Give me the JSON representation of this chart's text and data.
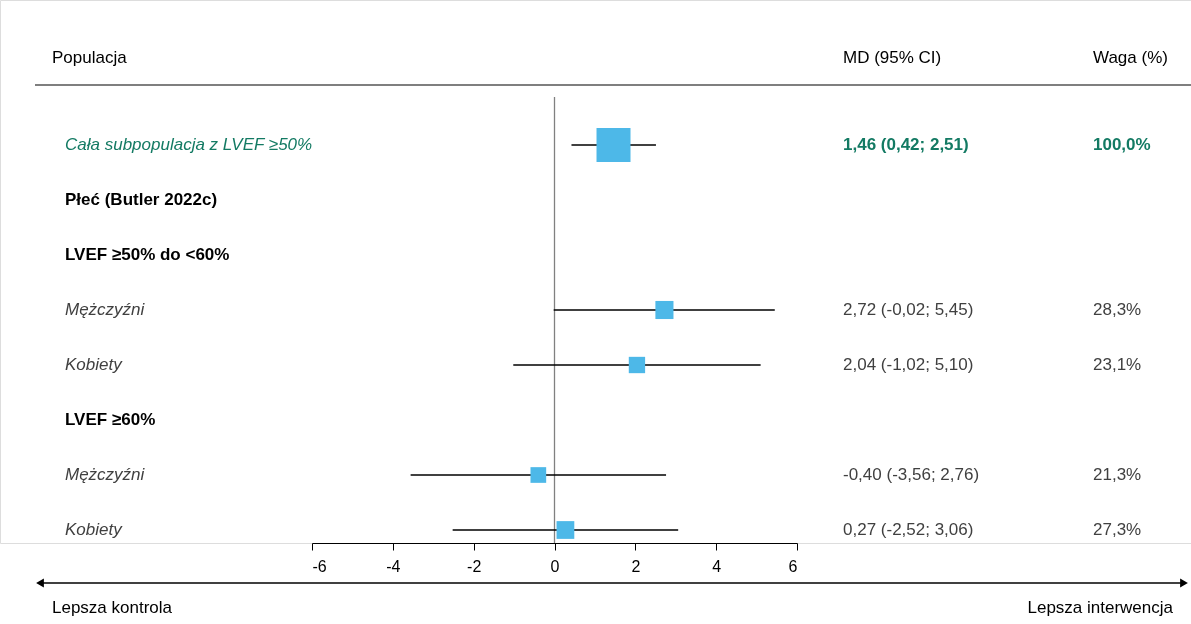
{
  "chart_data": {
    "type": "bubble",
    "orientation": "horizontal",
    "marker": "square",
    "categories": [
      "Cała subpopulacja z LVEF ≥50%",
      "Płeć (Butler 2022c)",
      "LVEF ≥50% do <60%",
      "Mężczyźni",
      "Kobiety",
      "LVEF ≥60%",
      "Mężczyźni",
      "Kobiety"
    ],
    "series": [
      {
        "color": "#4db8e8",
        "values": [
          1.46,
          null,
          null,
          2.72,
          2.04,
          null,
          -0.4,
          0.27
        ],
        "errors": [
          [
            0.42,
            2.51
          ],
          null,
          null,
          [
            -0.02,
            5.45
          ],
          [
            -1.02,
            5.1
          ],
          null,
          [
            -3.56,
            2.76
          ],
          [
            -2.52,
            3.06
          ]
        ],
        "sizes": [
          1,
          null,
          null,
          0.283,
          0.231,
          null,
          0.213,
          0.273
        ],
        "value_labels": [
          "1,46 (0,42; 2,51)",
          null,
          null,
          "2,72 (-0,02; 5,45)",
          "2,04 (-1,02; 5,10)",
          null,
          "-0,40 (-3,56; 2,76)",
          "0,27 (-2,52; 3,06)"
        ]
      }
    ],
    "xlim": [
      -6,
      6
    ],
    "xticks": [
      -6,
      -4,
      -2,
      0,
      2,
      4,
      6
    ],
    "ref_lines": [
      {
        "axis": "x",
        "value": 0,
        "color": "#808080"
      }
    ],
    "grid": false,
    "annotations": [
      "Populacja",
      "MD (95% CI)",
      "Waga (%)",
      "100,0%",
      "28,3%",
      "23,1%",
      "21,3%",
      "27,3%",
      "Lepsza kontrola",
      "Lepsza interwencja"
    ]
  }
}
